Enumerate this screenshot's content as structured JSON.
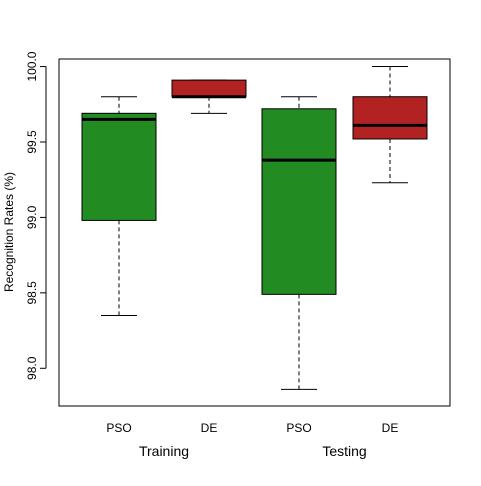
{
  "chart_data": {
    "type": "boxplot",
    "title": "",
    "xlabel": "",
    "ylabel": "Recognition Rates (%)",
    "ylim": [
      97.75,
      100.05
    ],
    "y_ticks": [
      98.0,
      98.5,
      99.0,
      99.5,
      100.0
    ],
    "y_tick_labels": [
      "98.0",
      "98.5",
      "99.0",
      "99.5",
      "100.0"
    ],
    "groups": [
      "Training",
      "Testing"
    ],
    "boxes": [
      {
        "label": "PSO",
        "group": "Training",
        "color": "#228B22",
        "min": 98.35,
        "q1": 98.98,
        "median": 99.65,
        "q3": 99.69,
        "max": 99.8
      },
      {
        "label": "DE",
        "group": "Training",
        "color": "#B22222",
        "min": 99.69,
        "q1": 99.8,
        "median": 99.8,
        "q3": 99.91,
        "max": 99.91
      },
      {
        "label": "PSO",
        "group": "Testing",
        "color": "#228B22",
        "min": 97.86,
        "q1": 98.49,
        "median": 99.38,
        "q3": 99.72,
        "max": 99.8
      },
      {
        "label": "DE",
        "group": "Testing",
        "color": "#B22222",
        "min": 99.23,
        "q1": 99.52,
        "median": 99.61,
        "q3": 99.8,
        "max": 100.0
      }
    ],
    "grid": false,
    "legend": "none"
  }
}
